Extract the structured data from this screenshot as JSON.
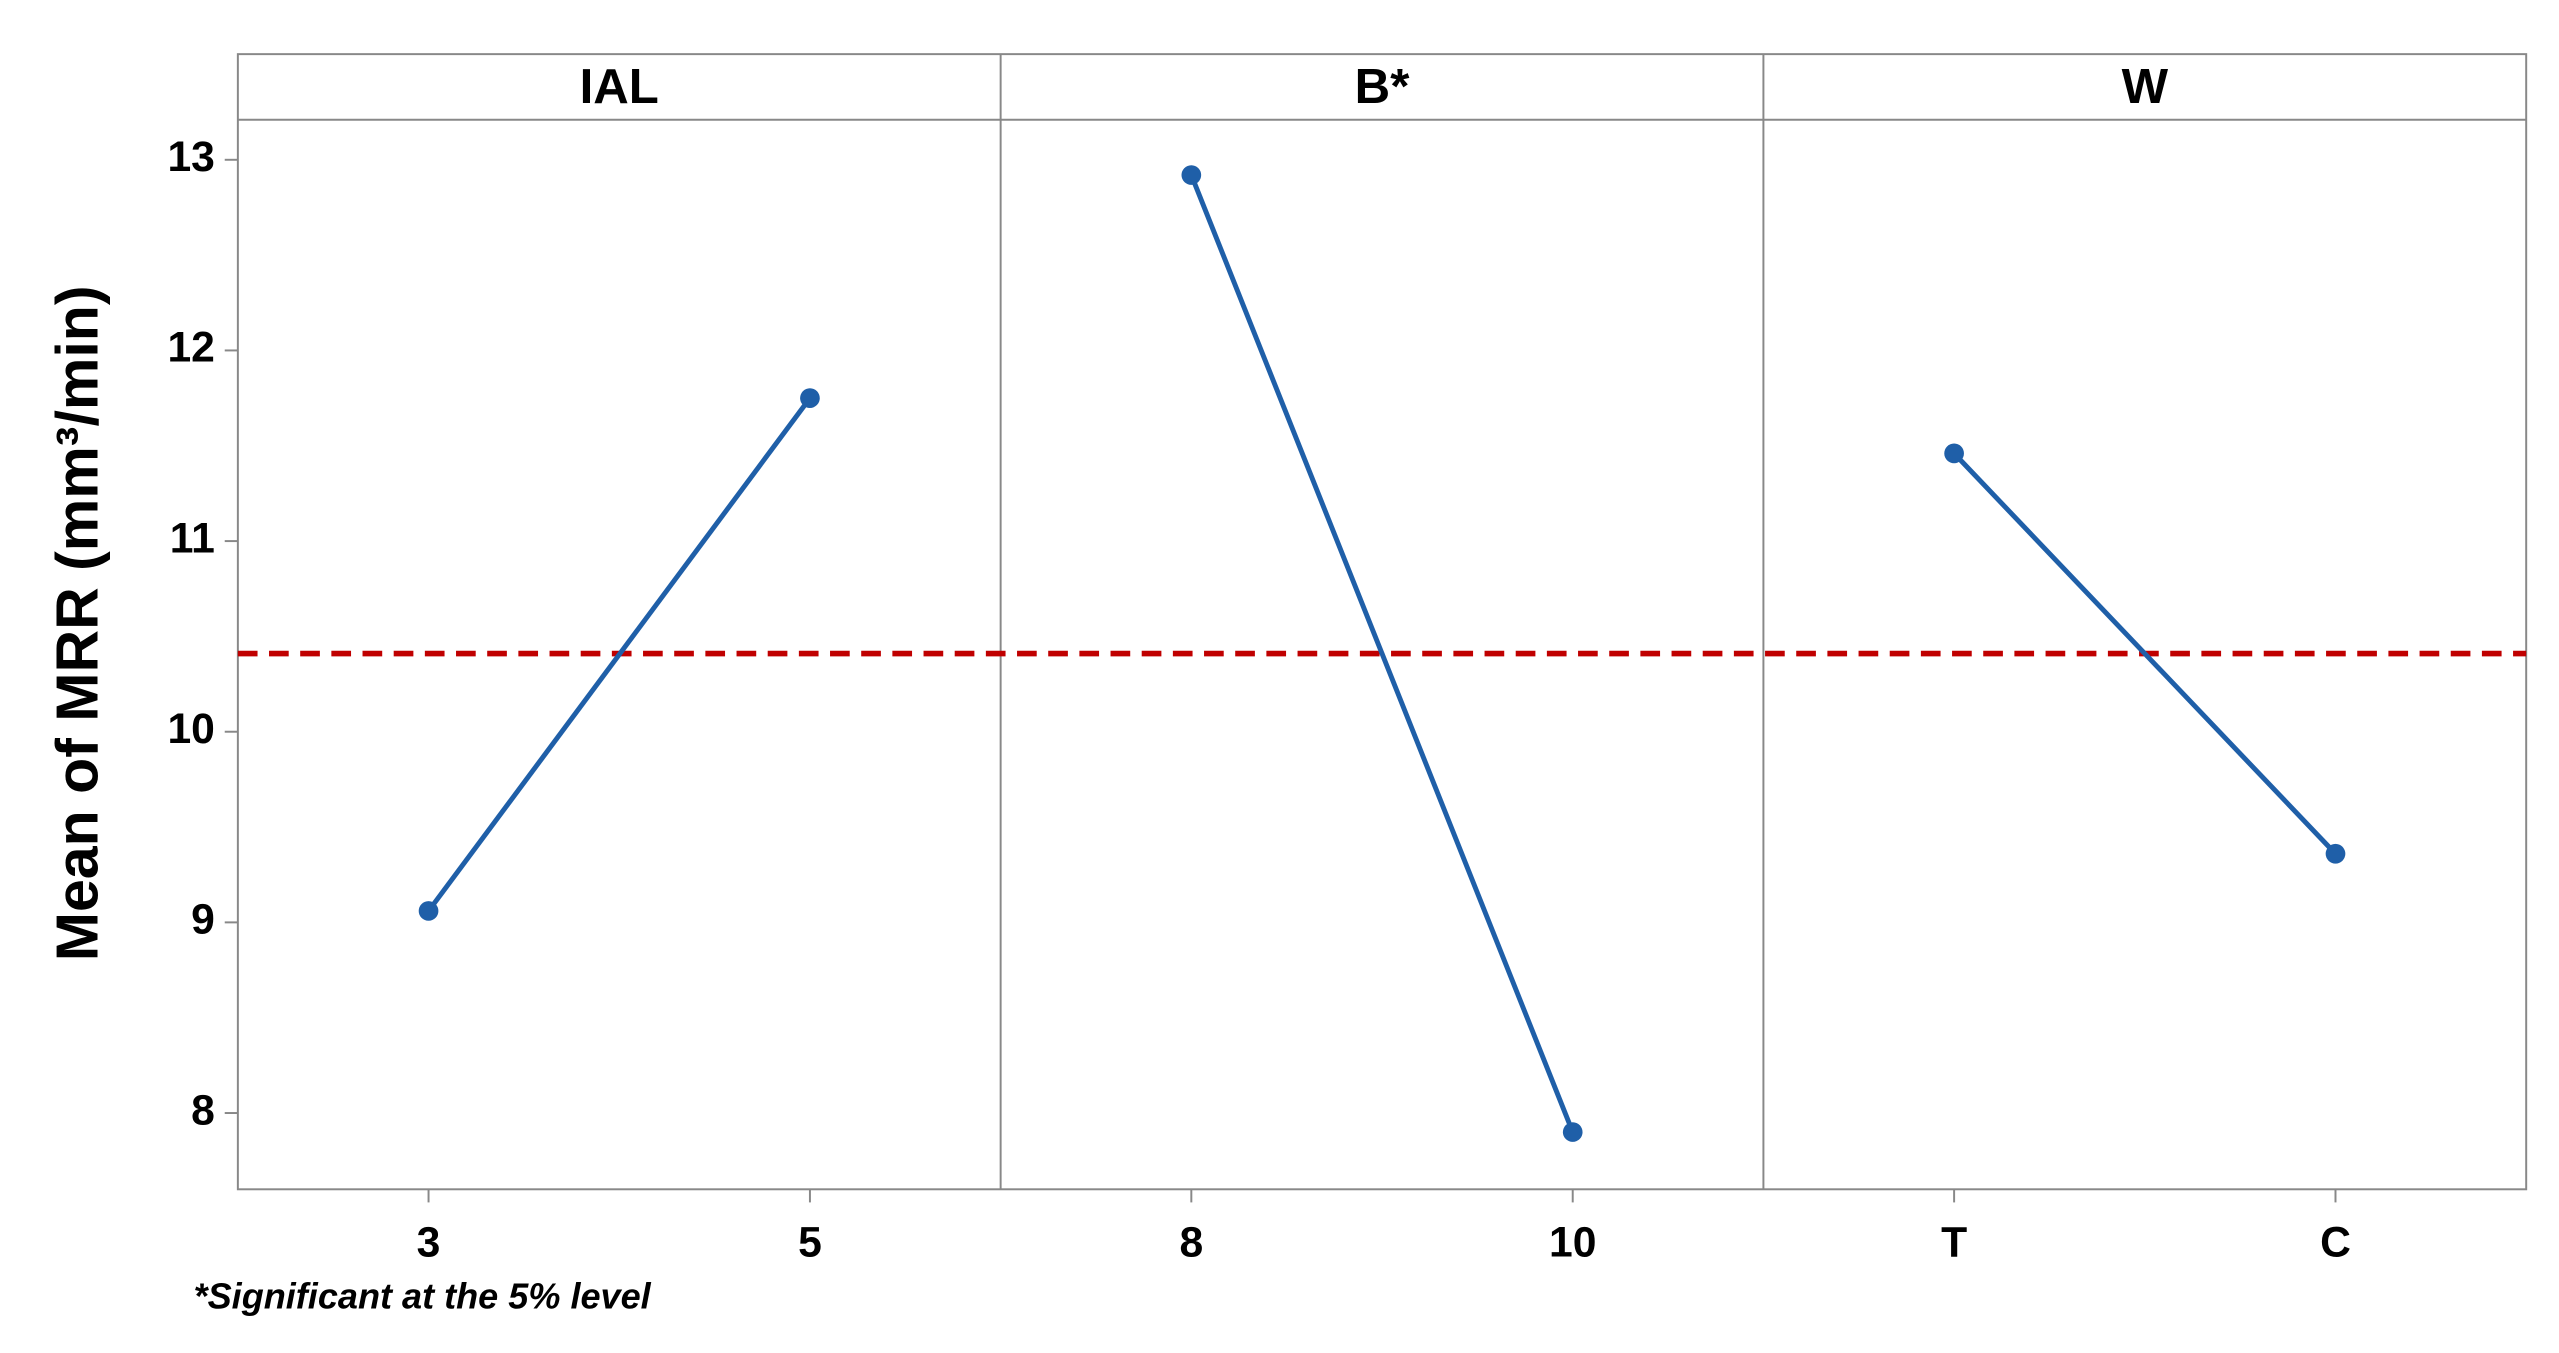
{
  "chart_data": {
    "type": "line",
    "y_label": "Mean of MRR (mm³/min)",
    "footnote": "*Significant at the 5% level",
    "ylim": [
      7.6,
      13.21
    ],
    "yticks": [
      8,
      9,
      10,
      11,
      12,
      13
    ],
    "reference_line": {
      "value": 10.41,
      "color": "#c00000"
    },
    "panels": [
      {
        "title": "IAL",
        "categories": [
          "3",
          "5"
        ],
        "values": [
          9.06,
          11.75
        ],
        "color": "#1f5fa8"
      },
      {
        "title": "B*",
        "categories": [
          "8",
          "10"
        ],
        "values": [
          12.92,
          7.9
        ],
        "color": "#1f5fa8"
      },
      {
        "title": "W",
        "categories": [
          "T",
          "C"
        ],
        "values": [
          11.46,
          9.36
        ],
        "color": "#1f5fa8"
      }
    ]
  }
}
